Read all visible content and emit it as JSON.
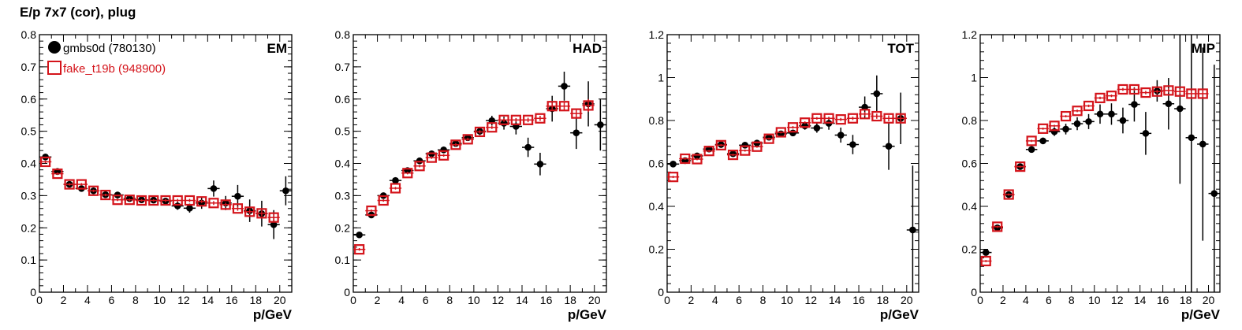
{
  "page": {
    "title": "E/p 7x7 (cor), plug"
  },
  "colors": {
    "series1": "#000000",
    "series2": "#d4141b",
    "frame": "#000000"
  },
  "legend": {
    "entries": [
      {
        "label": "gmbs0d (780130)",
        "marker": "filled-circle",
        "color": "#000000"
      },
      {
        "label": "fake_t19b (948900)",
        "marker": "open-square",
        "color": "#d4141b"
      }
    ],
    "placement": "top-left of first panel"
  },
  "chart_data": [
    {
      "type": "scatter",
      "panel_label": "EM",
      "xlabel": "p/GeV",
      "xlim": [
        0,
        21
      ],
      "ylim": [
        0,
        0.8
      ],
      "xticks": [
        "0",
        "2",
        "4",
        "6",
        "8",
        "10",
        "12",
        "14",
        "16",
        "18",
        "20"
      ],
      "yticks": [
        "0",
        "0.1",
        "0.2",
        "0.3",
        "0.4",
        "0.5",
        "0.6",
        "0.7",
        "0.8"
      ],
      "grid": false,
      "series": [
        {
          "name": "gmbs0d (780130)",
          "marker": "filled-circle",
          "x": [
            0.5,
            1.5,
            2.5,
            3.5,
            4.5,
            5.5,
            6.5,
            7.5,
            8.5,
            9.5,
            10.5,
            11.5,
            12.5,
            13.5,
            14.5,
            15.5,
            16.5,
            17.5,
            18.5,
            19.5,
            20.5
          ],
          "y": [
            0.42,
            0.375,
            0.335,
            0.322,
            0.315,
            0.303,
            0.302,
            0.291,
            0.287,
            0.286,
            0.283,
            0.268,
            0.261,
            0.277,
            0.322,
            0.277,
            0.298,
            0.253,
            0.244,
            0.21,
            0.315
          ],
          "yerr": [
            0.006,
            0.006,
            0.006,
            0.006,
            0.006,
            0.007,
            0.007,
            0.008,
            0.008,
            0.009,
            0.01,
            0.012,
            0.014,
            0.018,
            0.025,
            0.022,
            0.035,
            0.035,
            0.04,
            0.045,
            0.045
          ]
        },
        {
          "name": "fake_t19b (948900)",
          "marker": "open-square",
          "x": [
            0.5,
            1.5,
            2.5,
            3.5,
            4.5,
            5.5,
            6.5,
            7.5,
            8.5,
            9.5,
            10.5,
            11.5,
            12.5,
            13.5,
            14.5,
            15.5,
            16.5,
            17.5,
            18.5,
            19.5
          ],
          "y": [
            0.405,
            0.368,
            0.335,
            0.335,
            0.315,
            0.302,
            0.287,
            0.287,
            0.285,
            0.285,
            0.285,
            0.285,
            0.285,
            0.282,
            0.277,
            0.272,
            0.26,
            0.25,
            0.245,
            0.232
          ],
          "yerr": [
            0.004,
            0.004,
            0.004,
            0.004,
            0.004,
            0.004,
            0.004,
            0.004,
            0.004,
            0.004,
            0.005,
            0.005,
            0.005,
            0.005,
            0.006,
            0.006,
            0.007,
            0.008,
            0.009,
            0.01
          ]
        }
      ]
    },
    {
      "type": "scatter",
      "panel_label": "HAD",
      "xlabel": "p/GeV",
      "xlim": [
        0,
        21
      ],
      "ylim": [
        0,
        0.8
      ],
      "xticks": [
        "0",
        "2",
        "4",
        "6",
        "8",
        "10",
        "12",
        "14",
        "16",
        "18",
        "20"
      ],
      "yticks": [
        "0",
        "0.1",
        "0.2",
        "0.3",
        "0.4",
        "0.5",
        "0.6",
        "0.7",
        "0.8"
      ],
      "grid": false,
      "series": [
        {
          "name": "gmbs0d (780130)",
          "marker": "filled-circle",
          "x": [
            0.5,
            1.5,
            2.5,
            3.5,
            4.5,
            5.5,
            6.5,
            7.5,
            8.5,
            9.5,
            10.5,
            11.5,
            12.5,
            13.5,
            14.5,
            15.5,
            16.5,
            17.5,
            18.5,
            19.5,
            20.5
          ],
          "y": [
            0.178,
            0.24,
            0.3,
            0.347,
            0.378,
            0.408,
            0.43,
            0.442,
            0.462,
            0.48,
            0.5,
            0.533,
            0.525,
            0.515,
            0.45,
            0.398,
            0.57,
            0.64,
            0.495,
            0.585,
            0.52
          ],
          "yerr": [
            0.006,
            0.006,
            0.006,
            0.006,
            0.006,
            0.006,
            0.007,
            0.008,
            0.009,
            0.01,
            0.012,
            0.015,
            0.02,
            0.025,
            0.03,
            0.035,
            0.04,
            0.045,
            0.05,
            0.07,
            0.08
          ]
        },
        {
          "name": "fake_t19b (948900)",
          "marker": "open-square",
          "x": [
            0.5,
            1.5,
            2.5,
            3.5,
            4.5,
            5.5,
            6.5,
            7.5,
            8.5,
            9.5,
            10.5,
            11.5,
            12.5,
            13.5,
            14.5,
            15.5,
            16.5,
            17.5,
            18.5,
            19.5
          ],
          "y": [
            0.133,
            0.253,
            0.285,
            0.323,
            0.37,
            0.392,
            0.418,
            0.425,
            0.458,
            0.475,
            0.498,
            0.512,
            0.535,
            0.535,
            0.535,
            0.54,
            0.578,
            0.578,
            0.555,
            0.58
          ],
          "yerr": [
            0.004,
            0.004,
            0.004,
            0.004,
            0.004,
            0.004,
            0.004,
            0.004,
            0.005,
            0.005,
            0.005,
            0.005,
            0.006,
            0.006,
            0.007,
            0.008,
            0.01,
            0.012,
            0.015,
            0.02
          ]
        }
      ]
    },
    {
      "type": "scatter",
      "panel_label": "TOT",
      "xlabel": "p/GeV",
      "xlim": [
        0,
        21
      ],
      "ylim": [
        0,
        1.2
      ],
      "xticks": [
        "0",
        "2",
        "4",
        "6",
        "8",
        "10",
        "12",
        "14",
        "16",
        "18",
        "20"
      ],
      "yticks": [
        "0",
        "0.2",
        "0.4",
        "0.6",
        "0.8",
        "1",
        "1.2"
      ],
      "grid": false,
      "series": [
        {
          "name": "gmbs0d (780130)",
          "marker": "filled-circle",
          "x": [
            0.5,
            1.5,
            2.5,
            3.5,
            4.5,
            5.5,
            6.5,
            7.5,
            8.5,
            9.5,
            10.5,
            11.5,
            12.5,
            13.5,
            14.5,
            15.5,
            16.5,
            17.5,
            18.5,
            19.5,
            20.5
          ],
          "y": [
            0.597,
            0.613,
            0.635,
            0.667,
            0.688,
            0.645,
            0.685,
            0.695,
            0.722,
            0.738,
            0.742,
            0.775,
            0.765,
            0.787,
            0.732,
            0.688,
            0.862,
            0.925,
            0.68,
            0.81,
            0.29
          ],
          "yerr": [
            0.006,
            0.006,
            0.006,
            0.006,
            0.006,
            0.007,
            0.008,
            0.008,
            0.01,
            0.012,
            0.014,
            0.018,
            0.022,
            0.03,
            0.035,
            0.045,
            0.05,
            0.085,
            0.11,
            0.12,
            0.3
          ]
        },
        {
          "name": "fake_t19b (948900)",
          "marker": "open-square",
          "x": [
            0.5,
            1.5,
            2.5,
            3.5,
            4.5,
            5.5,
            6.5,
            7.5,
            8.5,
            9.5,
            10.5,
            11.5,
            12.5,
            13.5,
            14.5,
            15.5,
            16.5,
            17.5,
            18.5,
            19.5
          ],
          "y": [
            0.537,
            0.622,
            0.62,
            0.658,
            0.685,
            0.64,
            0.66,
            0.678,
            0.715,
            0.745,
            0.768,
            0.79,
            0.81,
            0.81,
            0.805,
            0.81,
            0.83,
            0.82,
            0.81,
            0.81
          ],
          "yerr": [
            0.005,
            0.005,
            0.005,
            0.005,
            0.005,
            0.005,
            0.005,
            0.005,
            0.005,
            0.005,
            0.006,
            0.006,
            0.006,
            0.006,
            0.007,
            0.008,
            0.01,
            0.012,
            0.014,
            0.016
          ]
        }
      ]
    },
    {
      "type": "scatter",
      "panel_label": "MIP",
      "xlabel": "p/GeV",
      "xlim": [
        0,
        21
      ],
      "ylim": [
        0,
        1.2
      ],
      "xticks": [
        "0",
        "2",
        "4",
        "6",
        "8",
        "10",
        "12",
        "14",
        "16",
        "18",
        "20"
      ],
      "yticks": [
        "0",
        "0.2",
        "0.4",
        "0.6",
        "0.8",
        "1",
        "1.2"
      ],
      "grid": false,
      "series": [
        {
          "name": "gmbs0d (780130)",
          "marker": "filled-circle",
          "x": [
            0.5,
            1.5,
            2.5,
            3.5,
            4.5,
            5.5,
            6.5,
            7.5,
            8.5,
            9.5,
            10.5,
            11.5,
            12.5,
            13.5,
            14.5,
            15.5,
            16.5,
            17.5,
            18.5,
            19.5,
            20.5
          ],
          "y": [
            0.185,
            0.3,
            0.455,
            0.585,
            0.665,
            0.705,
            0.748,
            0.76,
            0.785,
            0.795,
            0.83,
            0.83,
            0.8,
            0.875,
            0.74,
            0.938,
            0.878,
            0.855,
            0.72,
            0.69,
            0.46
          ],
          "yerr": [
            0.006,
            0.008,
            0.01,
            0.012,
            0.012,
            0.015,
            0.02,
            0.025,
            0.03,
            0.035,
            0.045,
            0.05,
            0.06,
            0.08,
            0.1,
            0.05,
            0.12,
            0.35,
            0.72,
            0.45,
            0.6
          ]
        },
        {
          "name": "fake_t19b (948900)",
          "marker": "open-square",
          "x": [
            0.5,
            1.5,
            2.5,
            3.5,
            4.5,
            5.5,
            6.5,
            7.5,
            8.5,
            9.5,
            10.5,
            11.5,
            12.5,
            13.5,
            14.5,
            15.5,
            16.5,
            17.5,
            18.5,
            19.5
          ],
          "y": [
            0.145,
            0.305,
            0.455,
            0.585,
            0.705,
            0.762,
            0.775,
            0.82,
            0.845,
            0.868,
            0.905,
            0.915,
            0.945,
            0.945,
            0.93,
            0.935,
            0.94,
            0.935,
            0.925,
            0.925
          ],
          "yerr": [
            0.005,
            0.005,
            0.005,
            0.005,
            0.005,
            0.005,
            0.005,
            0.005,
            0.006,
            0.006,
            0.006,
            0.006,
            0.007,
            0.007,
            0.008,
            0.009,
            0.01,
            0.012,
            0.014,
            0.016
          ]
        }
      ]
    }
  ]
}
